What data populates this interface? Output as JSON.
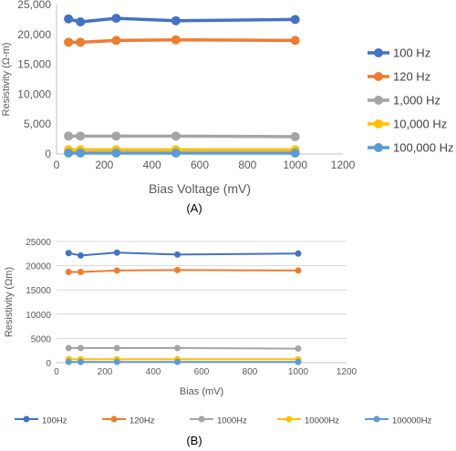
{
  "chart_data": [
    {
      "panel_label": "(A)",
      "type": "line",
      "xlabel": "Bias Voltage (mV)",
      "ylabel": "Resistivity (Ω-m)",
      "xlim": [
        0,
        1200
      ],
      "ylim": [
        0,
        25000
      ],
      "xticks": [
        "0",
        "200",
        "400",
        "600",
        "800",
        "1000",
        "1200"
      ],
      "yticks": [
        "0",
        "5,000",
        "10,000",
        "15,000",
        "20,000",
        "25,000"
      ],
      "grid": false,
      "legend_position": "right",
      "x": [
        50,
        100,
        250,
        500,
        1000
      ],
      "series": [
        {
          "name": "100 Hz",
          "color": "#4472C4",
          "values": [
            22600,
            22100,
            22700,
            22300,
            22500
          ]
        },
        {
          "name": "120 Hz",
          "color": "#ED7D31",
          "values": [
            18700,
            18700,
            19000,
            19100,
            19000
          ]
        },
        {
          "name": "1,000 Hz",
          "color": "#A5A5A5",
          "values": [
            3000,
            3000,
            3000,
            3000,
            2900
          ]
        },
        {
          "name": "10,000 Hz",
          "color": "#FFC000",
          "values": [
            700,
            700,
            700,
            700,
            700
          ]
        },
        {
          "name": "100,000 Hz",
          "color": "#5B9BD5",
          "values": [
            150,
            150,
            150,
            150,
            150
          ]
        }
      ]
    },
    {
      "panel_label": "(B)",
      "type": "line",
      "xlabel": "Bias (mV)",
      "ylabel": "Resistivity (Ωm)",
      "xlim": [
        0,
        1200
      ],
      "ylim": [
        0,
        25000
      ],
      "xticks": [
        "0",
        "200",
        "400",
        "600",
        "800",
        "1000",
        "1200"
      ],
      "yticks": [
        "0",
        "5000",
        "10000",
        "15000",
        "20000",
        "25000"
      ],
      "grid": true,
      "legend_position": "bottom",
      "x": [
        50,
        100,
        250,
        500,
        1000
      ],
      "series": [
        {
          "name": "100Hz",
          "color": "#4472C4",
          "values": [
            22600,
            22100,
            22700,
            22300,
            22500
          ]
        },
        {
          "name": "120Hz",
          "color": "#ED7D31",
          "values": [
            18700,
            18700,
            19000,
            19100,
            19000
          ]
        },
        {
          "name": "1000Hz",
          "color": "#A5A5A5",
          "values": [
            3000,
            3000,
            3000,
            3000,
            2900
          ]
        },
        {
          "name": "10000Hz",
          "color": "#FFC000",
          "values": [
            700,
            700,
            700,
            700,
            700
          ]
        },
        {
          "name": "100000Hz",
          "color": "#5B9BD5",
          "values": [
            150,
            150,
            150,
            150,
            150
          ]
        }
      ]
    }
  ]
}
